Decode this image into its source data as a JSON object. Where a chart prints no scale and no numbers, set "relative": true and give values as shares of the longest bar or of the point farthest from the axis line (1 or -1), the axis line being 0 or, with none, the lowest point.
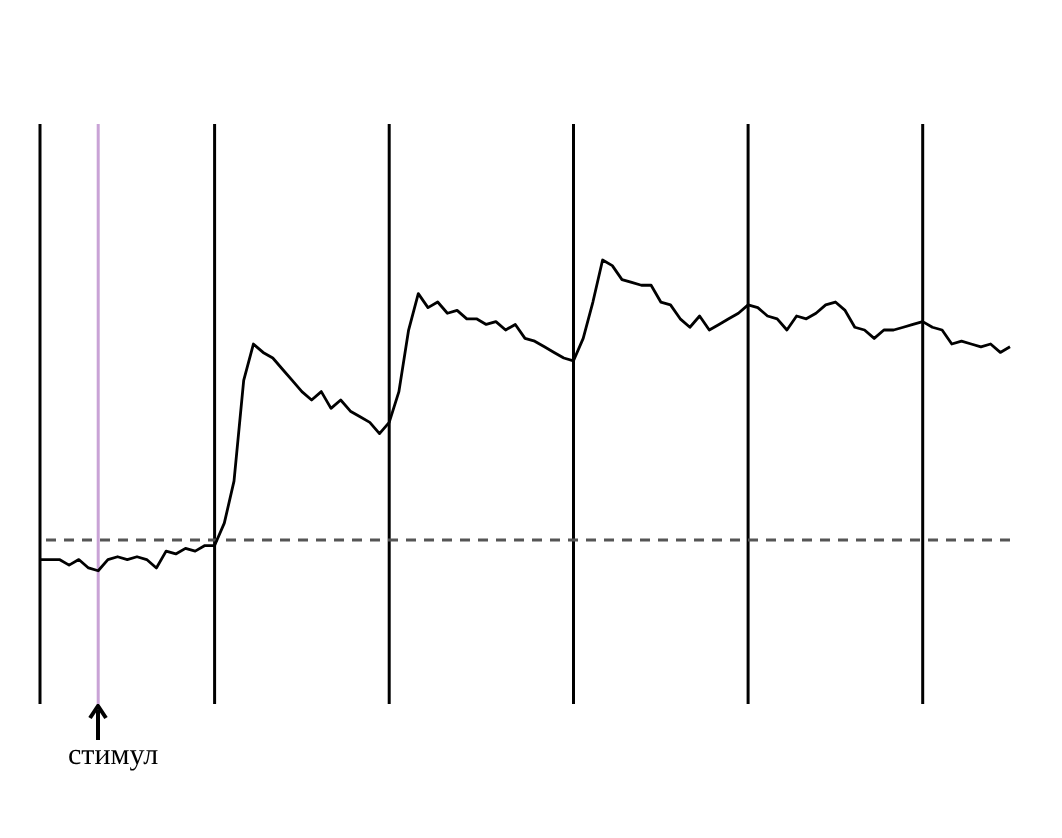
{
  "chart_data": {
    "type": "line",
    "relative": true,
    "categories": [
      null,
      null,
      null,
      null,
      null,
      null,
      null,
      null,
      null,
      null,
      null,
      null,
      null,
      null,
      null,
      null,
      null,
      null,
      null,
      null,
      null,
      null,
      null,
      null,
      null,
      null,
      null,
      null,
      null,
      null,
      null,
      null,
      null,
      null,
      null,
      null,
      null,
      null,
      null,
      null,
      null,
      null,
      null,
      null,
      null,
      null,
      null,
      null,
      null,
      null,
      null,
      null,
      null,
      null,
      null,
      null,
      null,
      null,
      null,
      null,
      null,
      null,
      null,
      null,
      null,
      null,
      null,
      null,
      null,
      null,
      null,
      null,
      null,
      null,
      null,
      null,
      null,
      null,
      null,
      null,
      null,
      null,
      null,
      null,
      null,
      null,
      null,
      null,
      null,
      null,
      null,
      null,
      null,
      null,
      null,
      null,
      null,
      null,
      null,
      null,
      null
    ],
    "series": [
      {
        "color": "#000000",
        "values": [
          -0.07,
          -0.07,
          -0.07,
          -0.09,
          -0.07,
          -0.1,
          -0.11,
          -0.07,
          -0.06,
          -0.07,
          -0.06,
          -0.07,
          -0.1,
          -0.04,
          -0.05,
          -0.03,
          -0.04,
          -0.02,
          -0.02,
          0.06,
          0.21,
          0.57,
          0.7,
          0.67,
          0.65,
          0.61,
          0.57,
          0.53,
          0.5,
          0.53,
          0.47,
          0.5,
          0.46,
          0.44,
          0.42,
          0.38,
          0.42,
          0.53,
          0.75,
          0.88,
          0.83,
          0.85,
          0.81,
          0.82,
          0.79,
          0.79,
          0.77,
          0.78,
          0.75,
          0.77,
          0.72,
          0.71,
          0.69,
          0.67,
          0.65,
          0.64,
          0.72,
          0.85,
          1,
          0.98,
          0.93,
          0.92,
          0.91,
          0.91,
          0.85,
          0.84,
          0.79,
          0.76,
          0.8,
          0.75,
          0.77,
          0.79,
          0.81,
          0.84,
          0.83,
          0.8,
          0.79,
          0.75,
          0.8,
          0.79,
          0.81,
          0.84,
          0.85,
          0.82,
          0.76,
          0.75,
          0.72,
          0.75,
          0.75,
          0.76,
          0.77,
          0.78,
          0.76,
          0.75,
          0.7,
          0.71,
          0.7,
          0.69,
          0.7,
          0.67,
          0.69
        ]
      }
    ],
    "ref_lines": [
      {
        "axis": "y",
        "value": 0,
        "color": "#555555",
        "line_style": "dashed"
      }
    ],
    "annotations": [
      "стимул"
    ],
    "grid": "x",
    "marker": "none",
    "line_style": "solid"
  }
}
